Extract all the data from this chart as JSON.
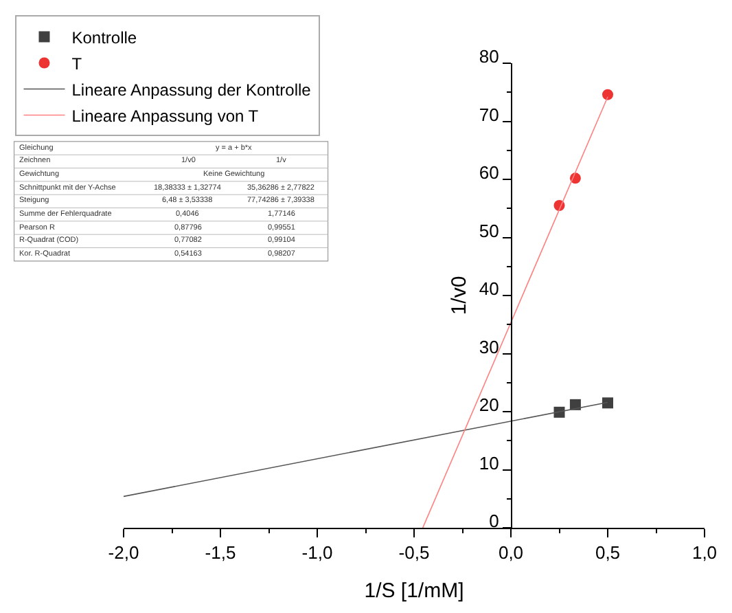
{
  "chart_data": {
    "type": "scatter",
    "xlabel": "1/S [1/mM]",
    "ylabel": "1/v0",
    "series": [
      {
        "name": "Kontrolle",
        "marker": "square",
        "color": "#404040",
        "x": [
          0.25,
          0.333,
          0.5
        ],
        "values": [
          19.9,
          21.2,
          21.5
        ]
      },
      {
        "name": "T",
        "marker": "circle",
        "color": "#ee3333",
        "x": [
          0.25,
          0.333,
          0.5
        ],
        "values": [
          55.5,
          60.2,
          74.6
        ]
      },
      {
        "name": "Lineare Anpassung der Kontrolle",
        "type": "line",
        "color": "#555555",
        "x": [
          -2.0,
          0.5
        ],
        "values": [
          5.4,
          21.6
        ]
      },
      {
        "name": "Lineare Anpassung von T",
        "type": "line",
        "color": "#ff8080",
        "x": [
          -0.455,
          0.5
        ],
        "values": [
          0.0,
          74.2
        ]
      }
    ],
    "xlim": [
      -2.0,
      1.0
    ],
    "ylim": [
      0,
      80
    ],
    "xticks": [
      {
        "value": -2.0,
        "label": "-2,0"
      },
      {
        "value": -1.5,
        "label": "-1,5"
      },
      {
        "value": -1.0,
        "label": "-1,0"
      },
      {
        "value": -0.5,
        "label": "-0,5"
      },
      {
        "value": 0.0,
        "label": "0,0"
      },
      {
        "value": 0.5,
        "label": "0,5"
      },
      {
        "value": 1.0,
        "label": "1,0"
      }
    ],
    "yticks": [
      0,
      10,
      20,
      30,
      40,
      50,
      60,
      70,
      80
    ],
    "legend": "top left",
    "annotations": [
      "Gleichung",
      "y = a + b*x",
      "Zeichnen",
      "1/v0",
      "1/v",
      "Gewichtung",
      "Keine Gewichtung",
      "Schnittpunkt mit der Y-Achse",
      "18,38333 ± 1,32774",
      "35,36286 ± 2,77822",
      "Steigung",
      "6,48 ± 3,53338",
      "77,74286 ± 7,39338",
      "Summe der Fehlerquadrate",
      "0,4046",
      "1,77146",
      "Pearson R",
      "0,87796",
      "0,99551",
      "R-Quadrat (COD)",
      "0,77082",
      "0,99104",
      "Kor. R-Quadrat",
      "0,54163",
      "0,98207"
    ]
  }
}
